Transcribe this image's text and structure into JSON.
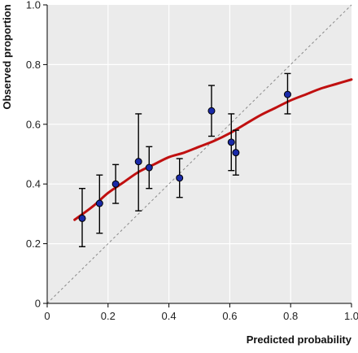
{
  "chart_data": {
    "type": "scatter",
    "title": "",
    "xlabel": "Predicted probability",
    "ylabel": "Observed proportion",
    "xlim": [
      0,
      1.0
    ],
    "ylim": [
      0,
      1.0
    ],
    "x_ticks": [
      "0",
      "0.2",
      "0.4",
      "0.6",
      "0.8",
      "1.0"
    ],
    "y_ticks": [
      "0",
      "0.2",
      "0.4",
      "0.6",
      "0.8",
      "1.0"
    ],
    "x_tick_values": [
      0,
      0.2,
      0.4,
      0.6,
      0.8,
      1.0
    ],
    "y_tick_values": [
      0,
      0.2,
      0.4,
      0.6,
      0.8,
      1.0
    ],
    "grid": true,
    "reference_line": {
      "from": [
        0,
        0
      ],
      "to": [
        1,
        1
      ],
      "style": "dashed",
      "color": "#8a8a8a"
    },
    "points": [
      {
        "x": 0.115,
        "y": 0.285,
        "lower": 0.19,
        "upper": 0.385
      },
      {
        "x": 0.172,
        "y": 0.335,
        "lower": 0.235,
        "upper": 0.43
      },
      {
        "x": 0.225,
        "y": 0.4,
        "lower": 0.335,
        "upper": 0.465
      },
      {
        "x": 0.3,
        "y": 0.475,
        "lower": 0.31,
        "upper": 0.635
      },
      {
        "x": 0.335,
        "y": 0.455,
        "lower": 0.385,
        "upper": 0.525
      },
      {
        "x": 0.435,
        "y": 0.42,
        "lower": 0.355,
        "upper": 0.485
      },
      {
        "x": 0.54,
        "y": 0.645,
        "lower": 0.56,
        "upper": 0.73
      },
      {
        "x": 0.605,
        "y": 0.54,
        "lower": 0.445,
        "upper": 0.635
      },
      {
        "x": 0.62,
        "y": 0.505,
        "lower": 0.43,
        "upper": 0.58
      },
      {
        "x": 0.79,
        "y": 0.7,
        "lower": 0.635,
        "upper": 0.77
      }
    ],
    "smooth_curve": {
      "x": [
        0.09,
        0.15,
        0.2,
        0.25,
        0.3,
        0.35,
        0.4,
        0.45,
        0.5,
        0.55,
        0.6,
        0.65,
        0.7,
        0.75,
        0.8,
        0.85,
        0.9,
        0.95,
        1.0
      ],
      "y": [
        0.28,
        0.325,
        0.37,
        0.405,
        0.44,
        0.465,
        0.49,
        0.505,
        0.525,
        0.545,
        0.57,
        0.6,
        0.63,
        0.655,
        0.68,
        0.7,
        0.72,
        0.735,
        0.75
      ]
    },
    "colors": {
      "plot_background": "#ebebeb",
      "grid": "#ffffff",
      "curve": "#c01010",
      "point_fill": "#1a2aa8",
      "point_edge": "#000000",
      "error_bar": "#000000"
    }
  }
}
